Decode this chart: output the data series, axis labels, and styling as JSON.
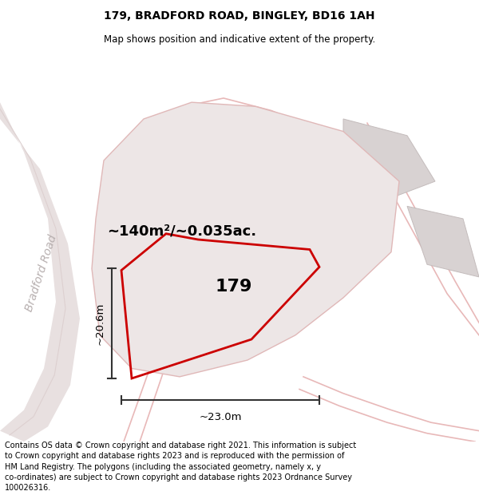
{
  "title": "179, BRADFORD ROAD, BINGLEY, BD16 1AH",
  "subtitle": "Map shows position and indicative extent of the property.",
  "footer": "Contains OS data © Crown copyright and database right 2021. This information is subject\nto Crown copyright and database rights 2023 and is reproduced with the permission of\nHM Land Registry. The polygons (including the associated geometry, namely x, y\nco-ordinates) are subject to Crown copyright and database rights 2023 Ordnance Survey\n100026316.",
  "area_label": "~140m²/~0.035ac.",
  "width_label": "~23.0m",
  "height_label": "~20.6m",
  "plot_number": "179",
  "bg_color": "#f5f2f2",
  "plot_outline": "#cc0000",
  "dim_line_color": "#333333",
  "road_label_color": "#b8b0b0",
  "title_fontsize": 10,
  "subtitle_fontsize": 8.5,
  "footer_fontsize": 7,
  "area_fontsize": 13,
  "plot_num_fontsize": 16,
  "dim_fontsize": 9.5,
  "road_label_fontsize": 10
}
